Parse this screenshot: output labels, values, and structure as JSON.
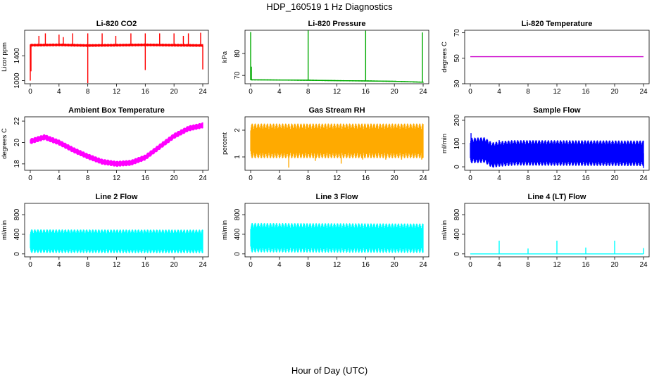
{
  "figure": {
    "title": "HDP_160519  1 Hz Diagnostics",
    "xlabel": "Hour of Day (UTC)"
  },
  "chart_data": [
    {
      "type": "line",
      "title": "Li-820 CO2",
      "ylabel": "Licor ppm",
      "color": "#ff0000",
      "xlim": [
        0,
        24
      ],
      "ylim": [
        950,
        1810
      ],
      "xticks": [
        "0",
        "4",
        "8",
        "12",
        "16",
        "20",
        "24"
      ],
      "yticks": [
        1000,
        1400
      ],
      "baseline": [
        [
          0,
          1570
        ],
        [
          4,
          1575
        ],
        [
          8,
          1565
        ],
        [
          12,
          1570
        ],
        [
          16,
          1575
        ],
        [
          20,
          1570
        ],
        [
          24,
          1565
        ]
      ],
      "band": 22,
      "spikes": [
        [
          0,
          1000
        ],
        [
          0.1,
          1150
        ],
        [
          1.2,
          1720
        ],
        [
          2.1,
          1760
        ],
        [
          4.0,
          1740
        ],
        [
          4.6,
          1700
        ],
        [
          5.9,
          1760
        ],
        [
          8.0,
          1760
        ],
        [
          8.0,
          960
        ],
        [
          10.0,
          1760
        ],
        [
          11.9,
          1720
        ],
        [
          14.0,
          1760
        ],
        [
          16.0,
          1760
        ],
        [
          16.0,
          1170
        ],
        [
          18.0,
          1760
        ],
        [
          20.0,
          1760
        ],
        [
          21.3,
          1720
        ],
        [
          22.0,
          1760
        ],
        [
          23.7,
          1770
        ],
        [
          24.0,
          1180
        ]
      ]
    },
    {
      "type": "line",
      "title": "Li-820 Pressure",
      "ylabel": "kPa",
      "color": "#00aa00",
      "xlim": [
        0,
        24
      ],
      "ylim": [
        66.2,
        90.6
      ],
      "xticks": [
        "0",
        "4",
        "8",
        "12",
        "16",
        "20",
        "24"
      ],
      "yticks": [
        70,
        80
      ],
      "baseline": [
        [
          0,
          68.0
        ],
        [
          4,
          67.9
        ],
        [
          8,
          67.8
        ],
        [
          12,
          67.6
        ],
        [
          16,
          67.5
        ],
        [
          20,
          67.3
        ],
        [
          24,
          66.9
        ]
      ],
      "band": 0.25,
      "spikes": [
        [
          0,
          89.8
        ],
        [
          0.1,
          74.0
        ],
        [
          8.0,
          90.5
        ],
        [
          16.0,
          90.4
        ],
        [
          23.9,
          89.6
        ]
      ]
    },
    {
      "type": "line",
      "title": "Li-820 Temperature",
      "ylabel": "degrees C",
      "color": "#cc00cc",
      "xlim": [
        0,
        24
      ],
      "ylim": [
        30,
        72
      ],
      "xticks": [
        "0",
        "4",
        "8",
        "12",
        "16",
        "20",
        "24"
      ],
      "yticks": [
        30,
        50,
        70
      ],
      "baseline": [
        [
          0,
          51.2
        ],
        [
          24,
          51.2
        ]
      ],
      "band": 0,
      "spikes": []
    },
    {
      "type": "line",
      "title": "Ambient Box Temperature",
      "ylabel": "degrees C",
      "color": "#ff00ff",
      "xlim": [
        0,
        24
      ],
      "ylim": [
        17.4,
        22.4
      ],
      "xticks": [
        "0",
        "4",
        "8",
        "12",
        "16",
        "20",
        "24"
      ],
      "yticks": [
        18,
        20,
        22
      ],
      "baseline": [
        [
          0,
          20.1
        ],
        [
          2,
          20.5
        ],
        [
          4,
          20.0
        ],
        [
          6,
          19.3
        ],
        [
          8,
          18.7
        ],
        [
          10,
          18.2
        ],
        [
          12,
          18.0
        ],
        [
          14,
          18.1
        ],
        [
          16,
          18.6
        ],
        [
          18,
          19.6
        ],
        [
          20,
          20.6
        ],
        [
          22,
          21.3
        ],
        [
          24,
          21.6
        ]
      ],
      "band": 0.28,
      "spikes": []
    },
    {
      "type": "line",
      "title": "Gas Stream RH",
      "ylabel": "percent",
      "color": "#ffaa00",
      "xlim": [
        0,
        24
      ],
      "ylim": [
        0.5,
        2.5
      ],
      "xticks": [
        "0",
        "4",
        "8",
        "12",
        "16",
        "20",
        "24"
      ],
      "yticks": [
        1.0,
        2.0
      ],
      "baseline": [
        [
          0,
          1.6
        ],
        [
          24,
          1.6
        ]
      ],
      "band": 0.65,
      "spikes": [
        [
          5.3,
          0.6
        ],
        [
          9.0,
          0.85
        ],
        [
          12.6,
          0.75
        ],
        [
          15.6,
          0.9
        ],
        [
          18.8,
          0.9
        ],
        [
          21.0,
          0.9
        ],
        [
          23.8,
          0.9
        ]
      ]
    },
    {
      "type": "line",
      "title": "Sample Flow",
      "ylabel": "ml/min",
      "color": "#0000ff",
      "xlim": [
        0,
        24
      ],
      "ylim": [
        -15,
        215
      ],
      "xticks": [
        "0",
        "4",
        "8",
        "12",
        "16",
        "20",
        "24"
      ],
      "yticks": [
        0,
        100,
        200
      ],
      "baseline": [
        [
          0,
          70
        ],
        [
          2,
          72
        ],
        [
          3,
          50
        ],
        [
          4,
          55
        ],
        [
          6,
          60
        ],
        [
          24,
          58
        ]
      ],
      "band": 55,
      "spikes": [
        [
          0.1,
          145
        ],
        [
          4,
          115
        ],
        [
          24,
          -5
        ]
      ]
    },
    {
      "type": "line",
      "title": "Line 2 Flow",
      "ylabel": "ml/min",
      "color": "#00ffff",
      "xlim": [
        0,
        24
      ],
      "ylim": [
        -60,
        1030
      ],
      "xticks": [
        "0",
        "4",
        "8",
        "12",
        "16",
        "20",
        "24"
      ],
      "yticks": [
        0,
        400,
        800
      ],
      "baseline": [
        [
          0,
          260
        ],
        [
          24,
          255
        ]
      ],
      "band": 240,
      "spikes": []
    },
    {
      "type": "line",
      "title": "Line 3 Flow",
      "ylabel": "ml/min",
      "color": "#00ffff",
      "xlim": [
        0,
        24
      ],
      "ylim": [
        -60,
        1030
      ],
      "xticks": [
        "0",
        "4",
        "8",
        "12",
        "16",
        "20",
        "24"
      ],
      "yticks": [
        0,
        400,
        800
      ],
      "baseline": [
        [
          0,
          330
        ],
        [
          24,
          320
        ]
      ],
      "band": 300,
      "spikes": []
    },
    {
      "type": "line",
      "title": "Line 4 (LT) Flow",
      "ylabel": "ml/min",
      "color": "#00ffff",
      "xlim": [
        0,
        24
      ],
      "ylim": [
        -60,
        1030
      ],
      "xticks": [
        "0",
        "4",
        "8",
        "12",
        "16",
        "20",
        "24"
      ],
      "yticks": [
        0,
        400,
        800
      ],
      "baseline": [
        [
          0,
          0
        ],
        [
          24,
          0
        ]
      ],
      "band": 3,
      "spikes": [
        [
          4,
          270
        ],
        [
          8,
          110
        ],
        [
          12,
          270
        ],
        [
          16,
          130
        ],
        [
          20,
          270
        ],
        [
          24,
          120
        ]
      ]
    }
  ]
}
